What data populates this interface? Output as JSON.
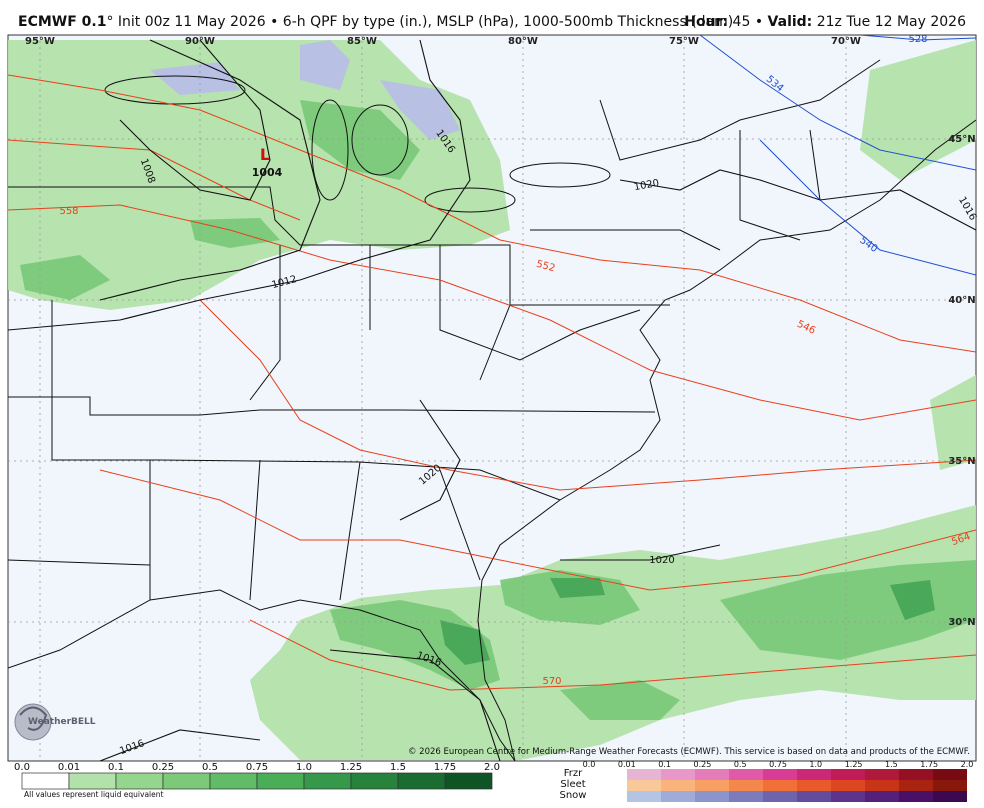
{
  "header": {
    "model": "ECMWF 0.1",
    "description": "° Init 00z 11 May 2026 • 6-h QPF by type (in.), MSLP (hPa), 1000-500mb Thickness (dam)",
    "hour_label": "Hour:",
    "hour": "45",
    "separator": "•",
    "valid_label": "Valid:",
    "valid": "21z Tue 12 May 2026"
  },
  "map": {
    "longitudes": [
      "95°W",
      "90°W",
      "85°W",
      "80°W",
      "75°W",
      "70°W"
    ],
    "latitudes": [
      "45°N",
      "40°N",
      "35°N",
      "30°N"
    ],
    "low": {
      "symbol": "L",
      "pressure": "1004"
    },
    "isobar_labels": [
      "1008",
      "1012",
      "1016",
      "1020",
      "1020",
      "1020",
      "1016",
      "1016",
      "1016"
    ],
    "thickness_labels": [
      "558",
      "552",
      "546",
      "540",
      "534",
      "528",
      "564",
      "570"
    ],
    "copyright": "© 2026 European Centre for Medium-Range Weather Forecasts (ECMWF). This service is based on data and products of the ECMWF.",
    "logo": "WeatherBELL"
  },
  "legend": {
    "qpf_scale": [
      "0.0",
      "0.01",
      "0.1",
      "0.25",
      "0.5",
      "0.75",
      "1.0",
      "1.25",
      "1.5",
      "1.75",
      "2.0"
    ],
    "note": "All values represent liquid equivalent",
    "types": [
      "Frzr",
      "Sleet",
      "Snow"
    ],
    "type_scale": [
      "0.0",
      "0.01",
      "0.1",
      "0.25",
      "0.5",
      "0.75",
      "1.0",
      "1.25",
      "1.5",
      "1.75",
      "2.0"
    ]
  }
}
